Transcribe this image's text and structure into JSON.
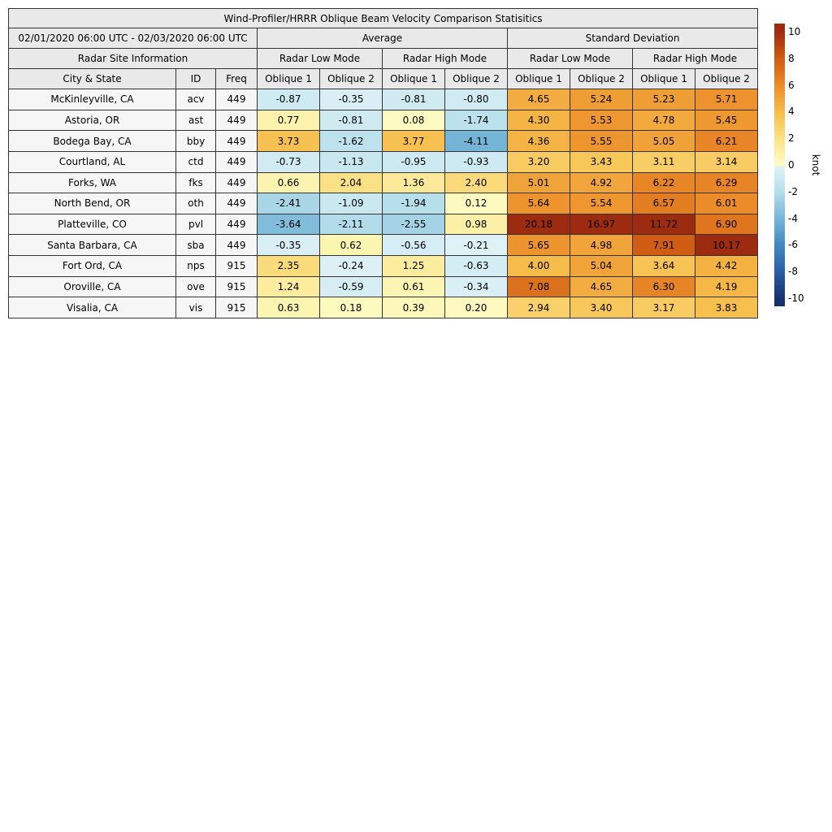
{
  "chart_data": {
    "type": "table",
    "title": "Wind-Profiler/HRRR Oblique Beam Velocity Comparison Statisitics",
    "header": {
      "period": "02/01/2020 06:00 UTC - 02/03/2020 06:00 UTC",
      "average": "Average",
      "std_dev": "Standard Deviation",
      "site_info": "Radar Site Information",
      "low_mode": "Radar Low Mode",
      "high_mode": "Radar High Mode",
      "city": "City & State",
      "id": "ID",
      "freq": "Freq",
      "oblique1": "Oblique 1",
      "oblique2": "Oblique 2"
    },
    "rows": [
      {
        "city": "McKinleyville, CA",
        "id": "acv",
        "freq": "449",
        "avg": [
          "-0.87",
          "-0.35",
          "-0.81",
          "-0.80"
        ],
        "sd": [
          "4.65",
          "5.24",
          "5.23",
          "5.71"
        ]
      },
      {
        "city": "Astoria, OR",
        "id": "ast",
        "freq": "449",
        "avg": [
          "0.77",
          "-0.81",
          "0.08",
          "-1.74"
        ],
        "sd": [
          "4.30",
          "5.53",
          "4.78",
          "5.45"
        ]
      },
      {
        "city": "Bodega Bay, CA",
        "id": "bby",
        "freq": "449",
        "avg": [
          "3.73",
          "-1.62",
          "3.77",
          "-4.11"
        ],
        "sd": [
          "4.36",
          "5.55",
          "5.05",
          "6.21"
        ]
      },
      {
        "city": "Courtland, AL",
        "id": "ctd",
        "freq": "449",
        "avg": [
          "-0.73",
          "-1.13",
          "-0.95",
          "-0.93"
        ],
        "sd": [
          "3.20",
          "3.43",
          "3.11",
          "3.14"
        ]
      },
      {
        "city": "Forks, WA",
        "id": "fks",
        "freq": "449",
        "avg": [
          "0.66",
          "2.04",
          "1.36",
          "2.40"
        ],
        "sd": [
          "5.01",
          "4.92",
          "6.22",
          "6.29"
        ]
      },
      {
        "city": "North Bend, OR",
        "id": "oth",
        "freq": "449",
        "avg": [
          "-2.41",
          "-1.09",
          "-1.94",
          "0.12"
        ],
        "sd": [
          "5.64",
          "5.54",
          "6.57",
          "6.01"
        ]
      },
      {
        "city": "Platteville, CO",
        "id": "pvl",
        "freq": "449",
        "avg": [
          "-3.64",
          "-2.11",
          "-2.55",
          "0.98"
        ],
        "sd": [
          "20.18",
          "16.97",
          "11.72",
          "6.90"
        ]
      },
      {
        "city": "Santa Barbara, CA",
        "id": "sba",
        "freq": "449",
        "avg": [
          "-0.35",
          "0.62",
          "-0.56",
          "-0.21"
        ],
        "sd": [
          "5.65",
          "4.98",
          "7.91",
          "10.17"
        ]
      },
      {
        "city": "Fort Ord, CA",
        "id": "nps",
        "freq": "915",
        "avg": [
          "2.35",
          "-0.24",
          "1.25",
          "-0.63"
        ],
        "sd": [
          "4.00",
          "5.04",
          "3.64",
          "4.42"
        ]
      },
      {
        "city": "Oroville, CA",
        "id": "ove",
        "freq": "915",
        "avg": [
          "1.24",
          "-0.59",
          "0.61",
          "-0.34"
        ],
        "sd": [
          "7.08",
          "4.65",
          "6.30",
          "4.19"
        ]
      },
      {
        "city": "Visalia, CA",
        "id": "vis",
        "freq": "915",
        "avg": [
          "0.63",
          "0.18",
          "0.39",
          "0.20"
        ],
        "sd": [
          "2.94",
          "3.40",
          "3.17",
          "3.83"
        ]
      }
    ],
    "colorbar": {
      "label": "knot",
      "ticks": [
        10,
        8,
        6,
        4,
        2,
        0,
        -2,
        -4,
        -6,
        -8,
        -10
      ],
      "vmin": -10,
      "vmax": 10,
      "bar_extend": 0.6
    }
  },
  "colors": {
    "header_bg": "#e9e9e9",
    "row_label_bg": "#f6f6f6",
    "border": "#333333",
    "anchors_positive": [
      "#fdfcc5",
      "#fbe286",
      "#f6bc49",
      "#eb8b29",
      "#d05a12",
      "#9d2b0f"
    ],
    "anchors_negative": [
      "#e2f3f7",
      "#b5deeb",
      "#76b6d8",
      "#4189c1",
      "#2a5fa5",
      "#16316e"
    ]
  }
}
